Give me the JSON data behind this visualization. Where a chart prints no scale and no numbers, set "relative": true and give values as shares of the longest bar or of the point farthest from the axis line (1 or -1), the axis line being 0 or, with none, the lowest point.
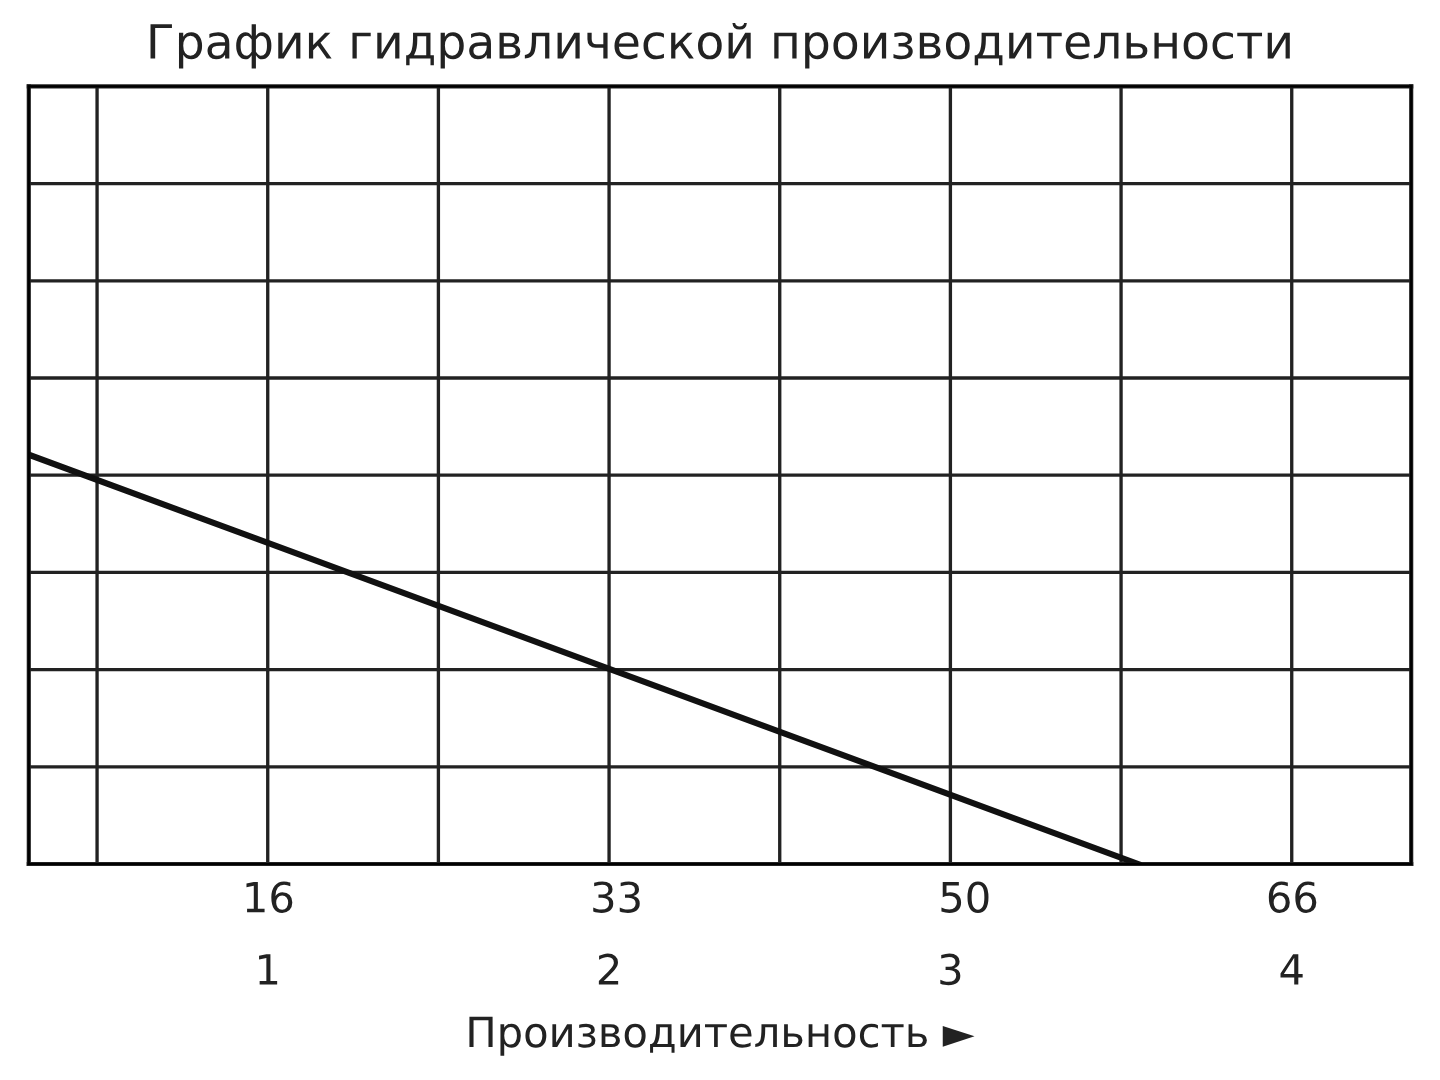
{
  "chart_data": {
    "type": "line",
    "title": "График гидравлической производительности",
    "xlabel": "Производительность ►",
    "x": [
      0.3,
      3.55
    ],
    "series": [
      {
        "color": "#111111",
        "values": [
          1,
          0
        ]
      }
    ],
    "relative": true,
    "xlim": [
      0.3,
      4.35
    ],
    "xticks": [
      {
        "value": 0.5,
        "label": null
      },
      1,
      {
        "value": 1.5,
        "label": null
      },
      2,
      {
        "value": 2.5,
        "label": null
      },
      3,
      {
        "value": 3.5,
        "label": null
      },
      4
    ],
    "x2lim": [
      4.3,
      71.8
    ],
    "x2ticks": [
      16,
      33,
      50,
      66
    ],
    "grid": true,
    "marker": "none",
    "line_style": "solid"
  }
}
